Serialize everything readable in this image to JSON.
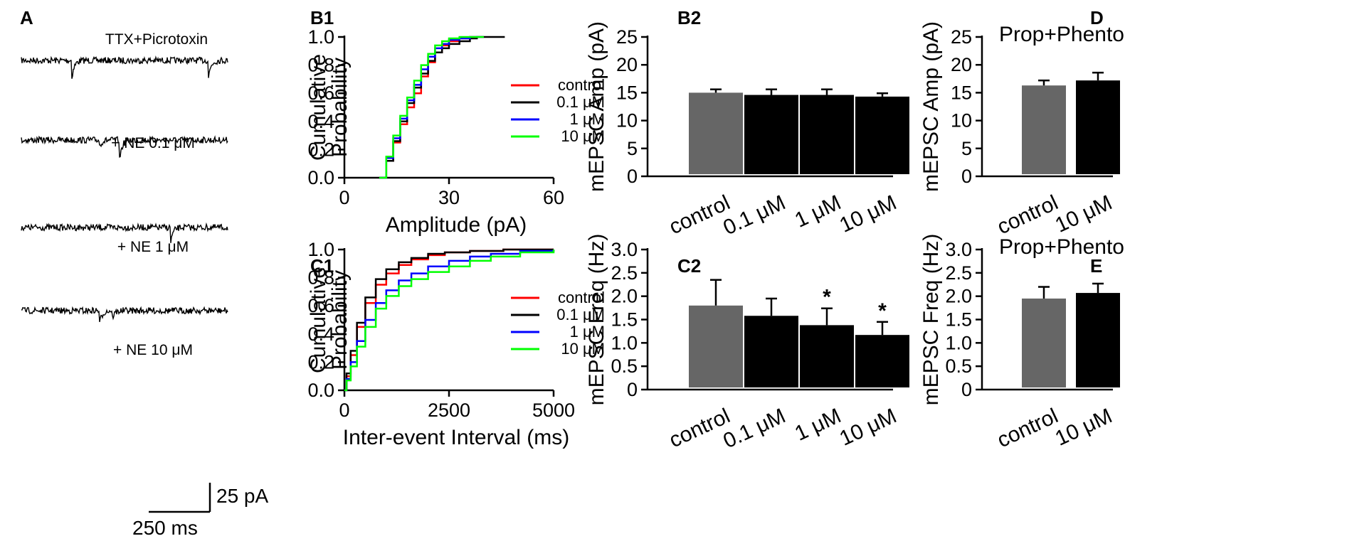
{
  "figure": {
    "panel_labels": {
      "A": "A",
      "B1": "B1",
      "B2": "B2",
      "C1": "C1",
      "C2": "C2",
      "D": "D",
      "E": "E"
    },
    "traces": [
      "TTX+Picrotoxin",
      "+ NE 0.1 μM",
      "+ NE 1 μM",
      "+ NE 10 μM"
    ],
    "scale_bar": {
      "amplitude": "25 pA",
      "time": "250 ms"
    },
    "colors": {
      "control": "#ff0000",
      "c01": "#000000",
      "c1": "#0000ff",
      "c10": "#00ff00",
      "bar_control": "#666666",
      "bar_ne": "#000000"
    }
  },
  "chart_data": [
    {
      "id": "B1",
      "type": "line",
      "title": "",
      "xlabel": "Amplitude (pA)",
      "ylabel": [
        "Cumulative",
        "Probability"
      ],
      "xlim": [
        0,
        60
      ],
      "ylim": [
        0,
        1
      ],
      "xticks": [
        0,
        30,
        60
      ],
      "xtick_labels": [
        "0",
        "30",
        "60"
      ],
      "yticks": [
        0,
        0.2,
        0.4,
        0.6,
        0.8,
        1.0
      ],
      "ytick_labels": [
        "0.0",
        "0.2",
        "0.4",
        "0.6",
        "0.8",
        "1.0"
      ],
      "legend": [
        "control",
        "0.1 μM",
        "1 μM",
        "10 μM"
      ],
      "series": [
        {
          "name": "control",
          "color": "#ff0000",
          "x": [
            10,
            12,
            14,
            16,
            18,
            20,
            22,
            24,
            26,
            28,
            30,
            33,
            36,
            40
          ],
          "y": [
            0,
            0.12,
            0.25,
            0.38,
            0.5,
            0.6,
            0.72,
            0.82,
            0.89,
            0.94,
            0.97,
            0.99,
            1.0,
            1.0
          ]
        },
        {
          "name": "0.1 μM",
          "color": "#000000",
          "x": [
            10,
            12,
            14,
            16,
            18,
            20,
            22,
            24,
            26,
            28,
            30,
            33,
            36,
            38,
            46
          ],
          "y": [
            0,
            0.12,
            0.26,
            0.4,
            0.53,
            0.64,
            0.74,
            0.83,
            0.89,
            0.92,
            0.95,
            0.97,
            0.99,
            1.0,
            1.0
          ]
        },
        {
          "name": "1 μM",
          "color": "#0000ff",
          "x": [
            10,
            12,
            14,
            16,
            18,
            20,
            22,
            24,
            26,
            28,
            30,
            33,
            36,
            40
          ],
          "y": [
            0,
            0.14,
            0.28,
            0.42,
            0.55,
            0.66,
            0.77,
            0.86,
            0.92,
            0.95,
            0.98,
            0.99,
            1.0,
            1.0
          ]
        },
        {
          "name": "10 μM",
          "color": "#00ff00",
          "x": [
            10,
            12,
            14,
            16,
            18,
            20,
            22,
            24,
            26,
            28,
            30,
            33,
            36,
            40
          ],
          "y": [
            0,
            0.15,
            0.3,
            0.44,
            0.57,
            0.69,
            0.8,
            0.88,
            0.94,
            0.97,
            0.99,
            1.0,
            1.0,
            1.0
          ]
        }
      ]
    },
    {
      "id": "C1",
      "type": "line",
      "title": "",
      "xlabel": "Inter-event Interval (ms)",
      "ylabel": [
        "Cumulative",
        "Probability"
      ],
      "xlim": [
        0,
        5000
      ],
      "ylim": [
        0,
        1
      ],
      "xticks": [
        0,
        2500,
        5000
      ],
      "xtick_labels": [
        "0",
        "2500",
        "5000"
      ],
      "yticks": [
        0,
        0.2,
        0.4,
        0.6,
        0.8,
        1.0
      ],
      "ytick_labels": [
        "0.0",
        "0.2",
        "0.4",
        "0.6",
        "0.8",
        "1.0"
      ],
      "legend": [
        "control",
        "0.1 μM",
        "1 μM",
        "10 μM"
      ],
      "series": [
        {
          "name": "control",
          "color": "#ff0000",
          "x": [
            0,
            50,
            150,
            300,
            500,
            750,
            1000,
            1300,
            1600,
            2000,
            2400,
            3000,
            3800,
            5000
          ],
          "y": [
            0,
            0.1,
            0.25,
            0.45,
            0.62,
            0.75,
            0.83,
            0.89,
            0.93,
            0.96,
            0.98,
            0.99,
            1.0,
            1.0
          ]
        },
        {
          "name": "0.1 μM",
          "color": "#000000",
          "x": [
            0,
            50,
            150,
            300,
            500,
            750,
            1000,
            1300,
            1600,
            2000,
            2400,
            3000,
            3800,
            5000
          ],
          "y": [
            0,
            0.12,
            0.28,
            0.48,
            0.66,
            0.79,
            0.86,
            0.91,
            0.94,
            0.97,
            0.98,
            0.99,
            1.0,
            1.0
          ]
        },
        {
          "name": "1 μM",
          "color": "#0000ff",
          "x": [
            0,
            50,
            150,
            300,
            500,
            750,
            1000,
            1300,
            1600,
            2000,
            2500,
            3000,
            3500,
            4200,
            5000
          ],
          "y": [
            0,
            0.08,
            0.2,
            0.35,
            0.5,
            0.62,
            0.71,
            0.78,
            0.83,
            0.88,
            0.92,
            0.95,
            0.97,
            0.99,
            1.0
          ]
        },
        {
          "name": "10 μM",
          "color": "#00ff00",
          "x": [
            0,
            50,
            150,
            300,
            500,
            750,
            1000,
            1300,
            1600,
            2000,
            2500,
            3000,
            3500,
            4200,
            5000
          ],
          "y": [
            0,
            0.07,
            0.17,
            0.31,
            0.45,
            0.58,
            0.67,
            0.74,
            0.79,
            0.84,
            0.88,
            0.92,
            0.95,
            0.98,
            1.0
          ]
        }
      ]
    },
    {
      "id": "B2",
      "type": "bar",
      "title": "",
      "ylabel": "mEPSC Amp (pA)",
      "categories": [
        "control",
        "0.1 μM",
        "1 μM",
        "10 μM"
      ],
      "values": [
        15.0,
        14.6,
        14.6,
        14.3
      ],
      "errors": [
        0.6,
        1.0,
        1.0,
        0.6
      ],
      "colors": [
        "#666666",
        "#000000",
        "#000000",
        "#000000"
      ],
      "significance": [
        "",
        "",
        "",
        ""
      ],
      "ylim": [
        0,
        25
      ],
      "yticks": [
        0,
        5,
        10,
        15,
        20,
        25
      ],
      "ytick_labels": [
        "0",
        "5",
        "10",
        "15",
        "20",
        "25"
      ]
    },
    {
      "id": "C2",
      "type": "bar",
      "title": "",
      "ylabel": "mEPSC Freq (Hz)",
      "categories": [
        "control",
        "0.1 μM",
        "1 μM",
        "10 μM"
      ],
      "values": [
        1.8,
        1.58,
        1.38,
        1.17
      ],
      "errors": [
        0.55,
        0.37,
        0.36,
        0.28
      ],
      "colors": [
        "#666666",
        "#000000",
        "#000000",
        "#000000"
      ],
      "significance": [
        "",
        "",
        "*",
        "*"
      ],
      "ylim": [
        0,
        3
      ],
      "yticks": [
        0,
        0.5,
        1.0,
        1.5,
        2.0,
        2.5,
        3.0
      ],
      "ytick_labels": [
        "0",
        "0.5",
        "1.0",
        "1.5",
        "2.0",
        "2.5",
        "3.0"
      ]
    },
    {
      "id": "D",
      "type": "bar",
      "title": "Prop+Phento",
      "ylabel": "mEPSC Amp (pA)",
      "categories": [
        "control",
        "10 μM"
      ],
      "values": [
        16.3,
        17.2
      ],
      "errors": [
        0.9,
        1.4
      ],
      "colors": [
        "#666666",
        "#000000"
      ],
      "significance": [
        "",
        ""
      ],
      "ylim": [
        0,
        25
      ],
      "yticks": [
        0,
        5,
        10,
        15,
        20,
        25
      ],
      "ytick_labels": [
        "0",
        "5",
        "10",
        "15",
        "20",
        "25"
      ]
    },
    {
      "id": "E",
      "type": "bar",
      "title": "Prop+Phento",
      "ylabel": "mEPSC Freq (Hz)",
      "categories": [
        "control",
        "10 μM"
      ],
      "values": [
        1.95,
        2.07
      ],
      "errors": [
        0.25,
        0.2
      ],
      "colors": [
        "#666666",
        "#000000"
      ],
      "significance": [
        "",
        ""
      ],
      "ylim": [
        0,
        3
      ],
      "yticks": [
        0,
        0.5,
        1.0,
        1.5,
        2.0,
        2.5,
        3.0
      ],
      "ytick_labels": [
        "0",
        "0.5",
        "1.0",
        "1.5",
        "2.0",
        "2.5",
        "3.0"
      ]
    }
  ]
}
